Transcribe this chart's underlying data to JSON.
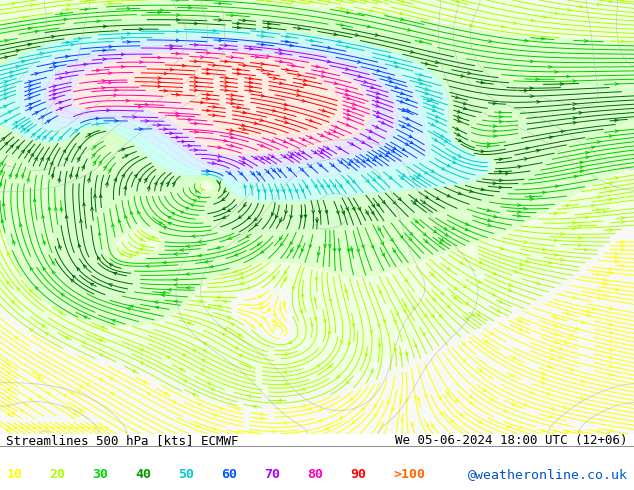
{
  "title_left": "Streamlines 500 hPa [kts] ECMWF",
  "title_right": "We 05-06-2024 18:00 UTC (12+06)",
  "watermark": "@weatheronline.co.uk",
  "legend_values": [
    "10",
    "20",
    "30",
    "40",
    "50",
    "60",
    "70",
    "80",
    "90",
    ">100"
  ],
  "legend_colors": [
    "#ffff00",
    "#aaff00",
    "#00dd00",
    "#009900",
    "#00cccc",
    "#0055ff",
    "#aa00ff",
    "#ff00bb",
    "#ff0000",
    "#ff6600"
  ],
  "bg_color": "#ffffff",
  "map_bg": "#d8f5c0",
  "fig_width": 6.34,
  "fig_height": 4.9,
  "dpi": 100,
  "title_fontsize": 9.0,
  "legend_fontsize": 9.5,
  "watermark_color": "#0055cc",
  "stream_colors": [
    "#ffff00",
    "#aaff00",
    "#00cc00",
    "#006600",
    "#00cccc",
    "#0044ff",
    "#9900ff",
    "#ff00aa",
    "#ff0000",
    "#ff6600"
  ],
  "stream_bounds": [
    0,
    10,
    20,
    30,
    40,
    50,
    60,
    70,
    80,
    90,
    110
  ]
}
